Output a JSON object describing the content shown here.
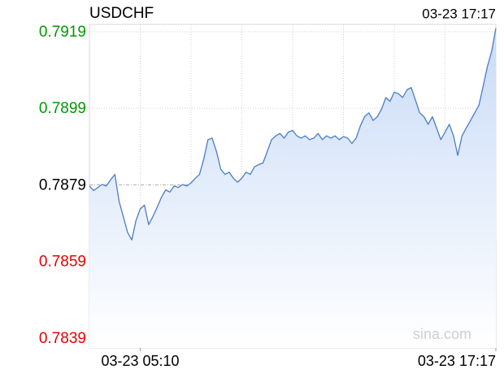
{
  "chart_data": {
    "type": "line",
    "title": "USDCHF",
    "timestamp": "03-23 17:17",
    "watermark": "sina.com",
    "series": [
      {
        "name": "USDCHF",
        "color": "#4a7cc7",
        "values": [
          0.78787,
          0.78775,
          0.78783,
          0.78791,
          0.78787,
          0.78803,
          0.78817,
          0.78747,
          0.78707,
          0.78666,
          0.78646,
          0.78697,
          0.78727,
          0.78737,
          0.78686,
          0.78707,
          0.78731,
          0.78757,
          0.78777,
          0.78771,
          0.78787,
          0.78783,
          0.78791,
          0.78787,
          0.78795,
          0.78807,
          0.78817,
          0.78857,
          0.78908,
          0.78912,
          0.78877,
          0.78831,
          0.78817,
          0.78823,
          0.78807,
          0.78797,
          0.78807,
          0.78823,
          0.78817,
          0.78837,
          0.78843,
          0.78847,
          0.78877,
          0.78908,
          0.78918,
          0.78924,
          0.78912,
          0.78928,
          0.78932,
          0.78918,
          0.78912,
          0.78918,
          0.78908,
          0.78912,
          0.78924,
          0.78908,
          0.78918,
          0.78912,
          0.78918,
          0.78908,
          0.78916,
          0.78912,
          0.78898,
          0.78912,
          0.78944,
          0.78968,
          0.78978,
          0.78958,
          0.78968,
          0.78988,
          0.79018,
          0.79008,
          0.79032,
          0.79028,
          0.79018,
          0.79038,
          0.79044,
          0.79012,
          0.78978,
          0.78968,
          0.78948,
          0.78968,
          0.78938,
          0.78908,
          0.78928,
          0.78948,
          0.78918,
          0.78867,
          0.78918,
          0.78938,
          0.78958,
          0.78978,
          0.78998,
          0.79048,
          0.79099,
          0.79139,
          0.79199
        ]
      }
    ],
    "xlim": [
      0,
      96
    ],
    "xticks": [
      {
        "value": 12,
        "label": "03-23 05:10"
      },
      {
        "value": 96,
        "label": "03-23 17:17"
      }
    ],
    "xgrid": [
      12,
      24,
      36,
      48,
      60,
      72,
      84
    ],
    "ylim": [
      0.78364,
      0.79209
    ],
    "yticks": [
      0.7919,
      0.7899,
      0.7879,
      0.7859,
      0.7839
    ],
    "ytick_colors": [
      "#009900",
      "#009900",
      "#000000",
      "#e60000",
      "#e60000"
    ],
    "grid": true
  }
}
